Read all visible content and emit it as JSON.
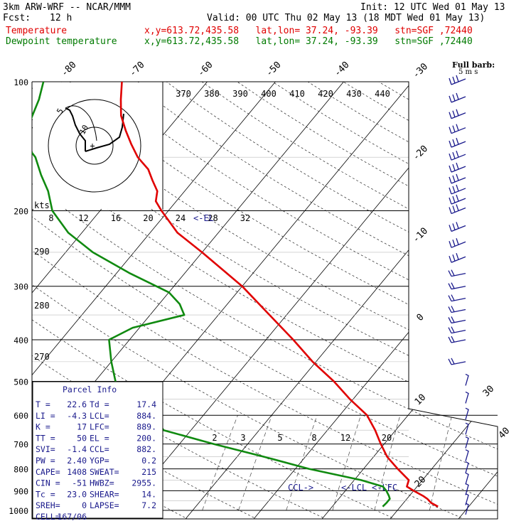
{
  "header": {
    "model": "3km ARW-WRF -- NCAR/MMM",
    "init": "Init: 12 UTC Wed 01 May 13",
    "fcst_label": "Fcst:",
    "fcst_value": "12 h",
    "valid": "Valid: 00 UTC Thu 02 May 13 (18 MDT Wed 01 May 13)",
    "temp_label": "Temperature",
    "temp_info": "x,y=613.72,435.58   lat,lon= 37.24, -93.39   stn=SGF ,72440",
    "dew_label": "Dewpoint temperature",
    "dew_info": "x,y=613.72,435.58   lat,lon= 37.24, -93.39   stn=SGF ,72440"
  },
  "barb_legend": {
    "line1": "Full barb:",
    "line2": "5 m s"
  },
  "colors": {
    "temperature": "#e00000",
    "dewpoint": "#108a10",
    "barbs": "#1a1a8c",
    "parcel_box": "#1a1a8c"
  },
  "chart_data": {
    "type": "line",
    "title": "",
    "diagram": "skew-T log-p",
    "y_axis": {
      "quantity": "pressure (hPa)",
      "scale": "log",
      "range": [
        1000,
        100
      ],
      "ticks": [
        100,
        200,
        300,
        400,
        500,
        600,
        700,
        800,
        900,
        1000
      ]
    },
    "isotherm_labels": [
      -80,
      -70,
      -60,
      -50,
      -40,
      -30,
      -20,
      -10,
      0,
      10,
      20,
      30,
      40
    ],
    "theta_e_labels": [
      370,
      380,
      390,
      400,
      410,
      420,
      430,
      440
    ],
    "theta_e_left_labels": [
      290,
      280,
      270
    ],
    "mixing_ratio_labels": [
      2,
      3,
      5,
      8,
      12,
      20
    ],
    "hodograph": {
      "units": "kts",
      "ring_labels": [
        "8",
        "12",
        "16",
        "20",
        "24",
        "28",
        "32"
      ],
      "marks": [
        "5",
        "10"
      ]
    },
    "levels_labels": {
      "el": "<-EL",
      "ccl": "CCL->",
      "lcl": "<-LCL",
      "lfc": "<-LFC"
    },
    "series": [
      {
        "name": "Temperature",
        "points": [
          [
            980,
            25.5
          ],
          [
            960,
            24
          ],
          [
            940,
            23
          ],
          [
            925,
            22
          ],
          [
            900,
            20
          ],
          [
            880,
            18.5
          ],
          [
            850,
            18
          ],
          [
            800,
            15
          ],
          [
            750,
            12
          ],
          [
            700,
            9.5
          ],
          [
            650,
            7
          ],
          [
            600,
            4
          ],
          [
            550,
            -0.5
          ],
          [
            500,
            -5
          ],
          [
            450,
            -10.5
          ],
          [
            400,
            -16
          ],
          [
            350,
            -22.5
          ],
          [
            300,
            -30
          ],
          [
            250,
            -40
          ],
          [
            225,
            -46
          ],
          [
            200,
            -51
          ],
          [
            190,
            -53
          ],
          [
            180,
            -54
          ],
          [
            170,
            -56
          ],
          [
            160,
            -58
          ],
          [
            150,
            -61
          ],
          [
            140,
            -63.5
          ],
          [
            130,
            -66
          ],
          [
            120,
            -68.5
          ],
          [
            110,
            -70.5
          ],
          [
            100,
            -72.5
          ]
        ]
      },
      {
        "name": "Dewpoint temperature",
        "points": [
          [
            980,
            17.4
          ],
          [
            960,
            17.5
          ],
          [
            940,
            17.5
          ],
          [
            925,
            17
          ],
          [
            900,
            16
          ],
          [
            880,
            15
          ],
          [
            850,
            11
          ],
          [
            800,
            2
          ],
          [
            750,
            -6
          ],
          [
            700,
            -15
          ],
          [
            650,
            -24
          ],
          [
            600,
            -27.5
          ],
          [
            550,
            -32
          ],
          [
            500,
            -37
          ],
          [
            450,
            -40
          ],
          [
            400,
            -43
          ],
          [
            375,
            -41
          ],
          [
            350,
            -35
          ],
          [
            330,
            -37
          ],
          [
            310,
            -40
          ],
          [
            280,
            -48
          ],
          [
            250,
            -56
          ],
          [
            225,
            -62
          ],
          [
            200,
            -67
          ],
          [
            180,
            -70
          ],
          [
            165,
            -73
          ],
          [
            150,
            -76
          ],
          [
            140,
            -79
          ],
          [
            130,
            -80.5
          ],
          [
            120,
            -81.5
          ],
          [
            110,
            -82.5
          ],
          [
            100,
            -84
          ]
        ]
      }
    ],
    "wind_barb_pressures": [
      100,
      110,
      120,
      130,
      140,
      150,
      160,
      170,
      180,
      190,
      200,
      220,
      240,
      260,
      280,
      300,
      320,
      340,
      360,
      380,
      400,
      450,
      500,
      550,
      600,
      650,
      700,
      750,
      800,
      850,
      900,
      950,
      1000
    ]
  },
  "parcel": {
    "title": "Parcel Info",
    "rows": [
      [
        "T  =",
        "22.6",
        "Td =",
        "17.4"
      ],
      [
        "LI =",
        "-4.3",
        "LCL=",
        "884."
      ],
      [
        "K  =",
        "17",
        "LFC=",
        "889."
      ],
      [
        "TT =",
        "50",
        "EL =",
        "200."
      ],
      [
        "SVI=",
        "-1.4",
        "CCL=",
        "882."
      ],
      [
        "PW =",
        "2.40",
        "YGP=",
        "0.2"
      ],
      [
        "CAPE=",
        "1408",
        "SWEAT=",
        "215"
      ],
      [
        "CIN =",
        "-51",
        "HWBZ=",
        "2955."
      ],
      [
        "Tc =",
        "23.0",
        "SHEAR=",
        "14."
      ],
      [
        "SREH=",
        "0",
        "LAPSE=",
        "7.2"
      ],
      [
        "CELL=",
        "167/06",
        "",
        ""
      ]
    ]
  }
}
